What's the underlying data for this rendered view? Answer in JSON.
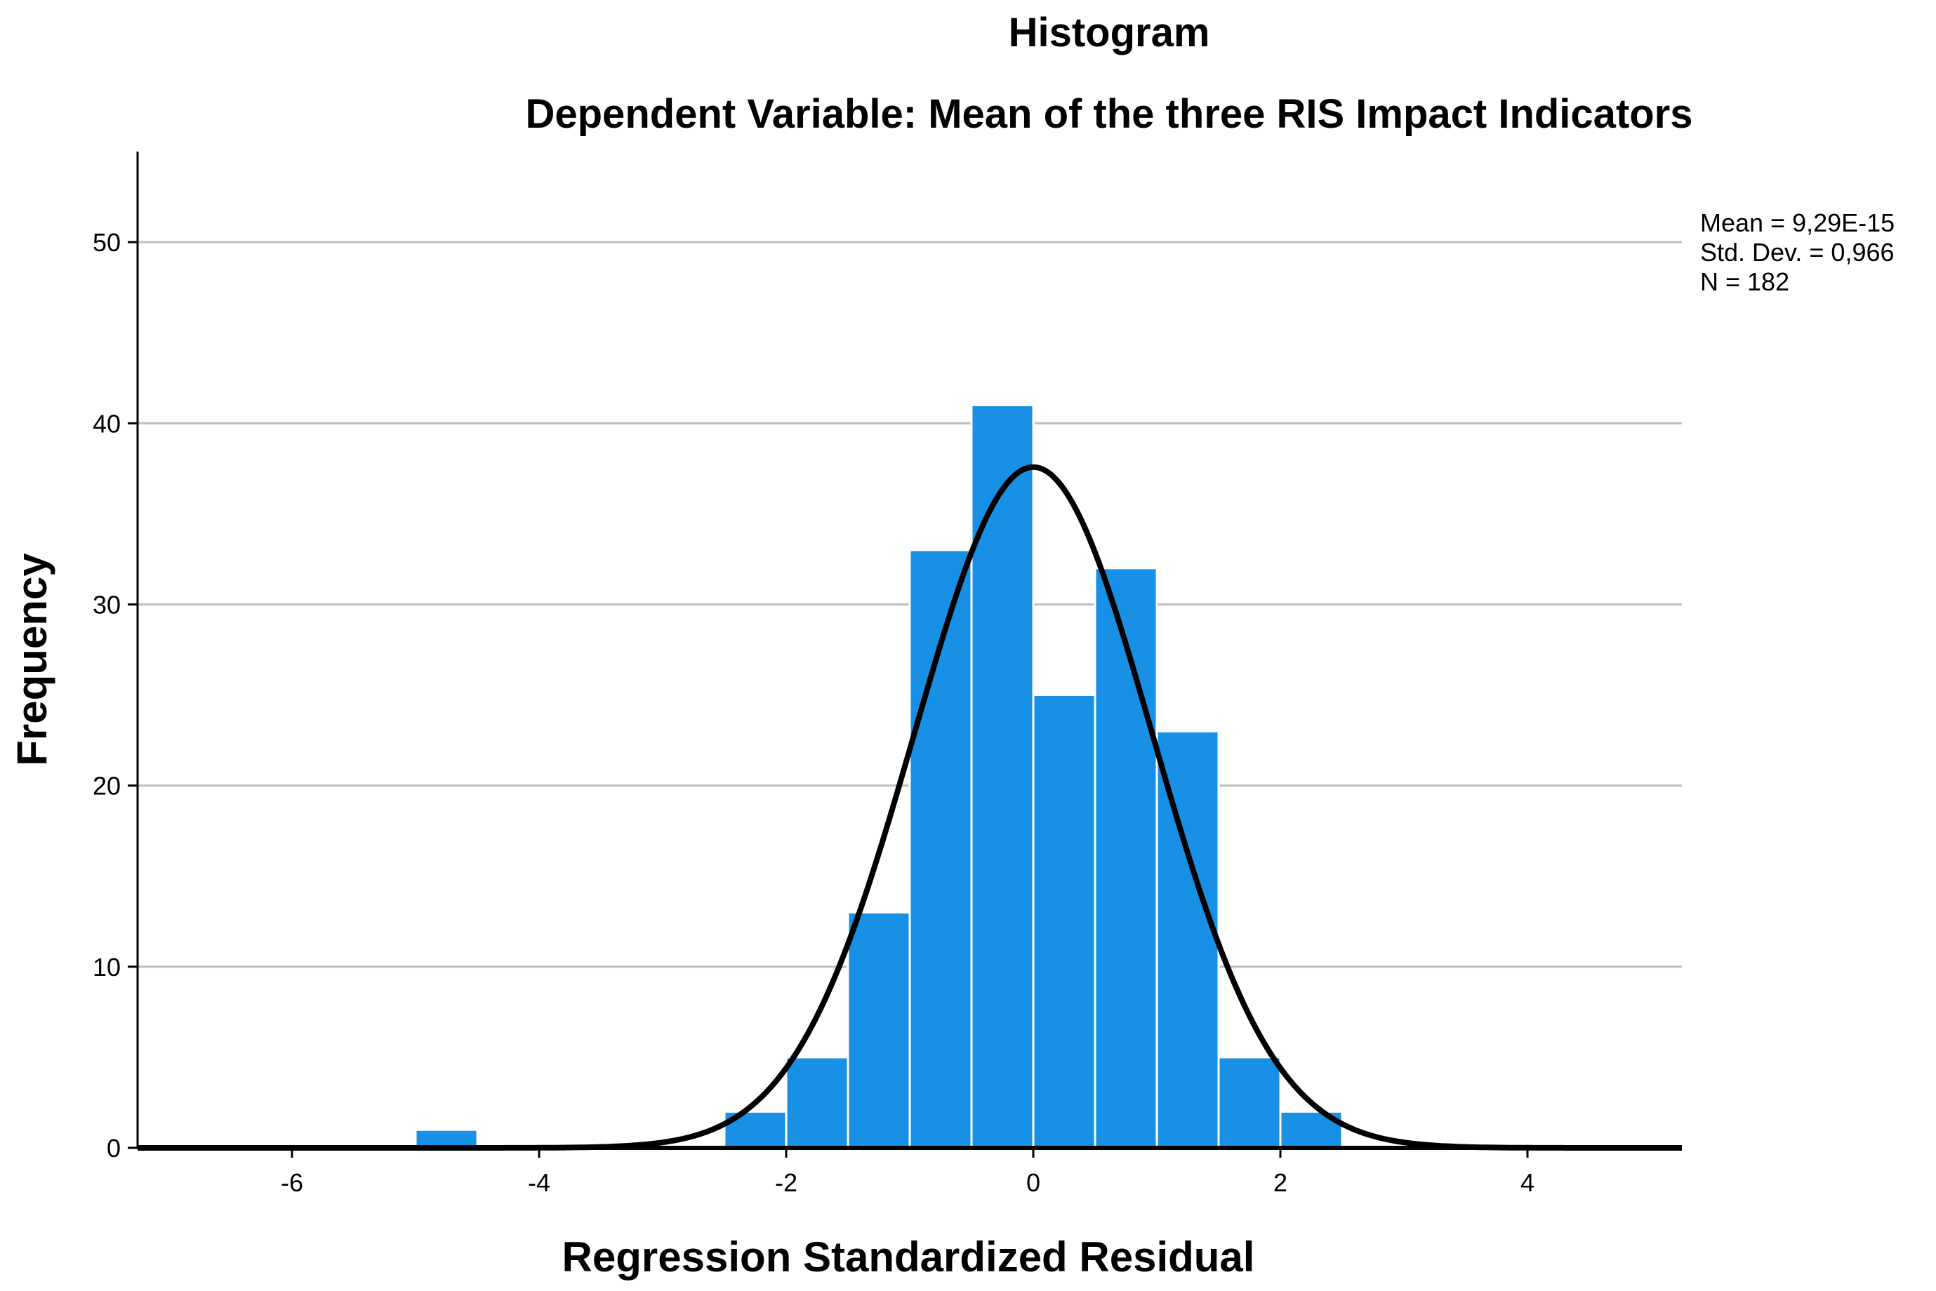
{
  "chart_data": {
    "type": "bar",
    "title": "Histogram",
    "subtitle": "Dependent Variable: Mean of the three RIS Impact Indicators",
    "xlabel": "Regression Standardized Residual",
    "ylabel": "Frequency",
    "xlim": [
      -7.25,
      5.25
    ],
    "ylim": [
      0,
      55
    ],
    "xticks": [
      -6,
      -4,
      -2,
      0,
      2,
      4
    ],
    "xtick_labels": [
      "-6",
      "-4",
      "-2",
      "0",
      "2",
      "4"
    ],
    "yticks": [
      0,
      10,
      20,
      30,
      40,
      50
    ],
    "ytick_labels": [
      "0",
      "10",
      "20",
      "30",
      "40",
      "50"
    ],
    "grid": "horizontal",
    "bin_width": 0.5,
    "bins": [
      {
        "start": -5.0,
        "count": 1
      },
      {
        "start": -2.5,
        "count": 2
      },
      {
        "start": -2.0,
        "count": 5
      },
      {
        "start": -1.5,
        "count": 13
      },
      {
        "start": -1.0,
        "count": 33
      },
      {
        "start": -0.5,
        "count": 41
      },
      {
        "start": 0.0,
        "count": 25
      },
      {
        "start": 0.5,
        "count": 32
      },
      {
        "start": 1.0,
        "count": 23
      },
      {
        "start": 1.5,
        "count": 5
      },
      {
        "start": 2.0,
        "count": 2
      }
    ],
    "normal_curve": {
      "mean": 0,
      "std": 0.966,
      "n": 182
    },
    "stats": {
      "mean_label": "Mean = 9,29E-15",
      "std_label": "Std. Dev. = 0,966",
      "n_label": "N = 182"
    },
    "colors": {
      "bar": "#1790e6",
      "bar_edge": "#ffffff",
      "curve": "#000000",
      "grid": "#bdbdbd",
      "axis": "#000000"
    }
  }
}
